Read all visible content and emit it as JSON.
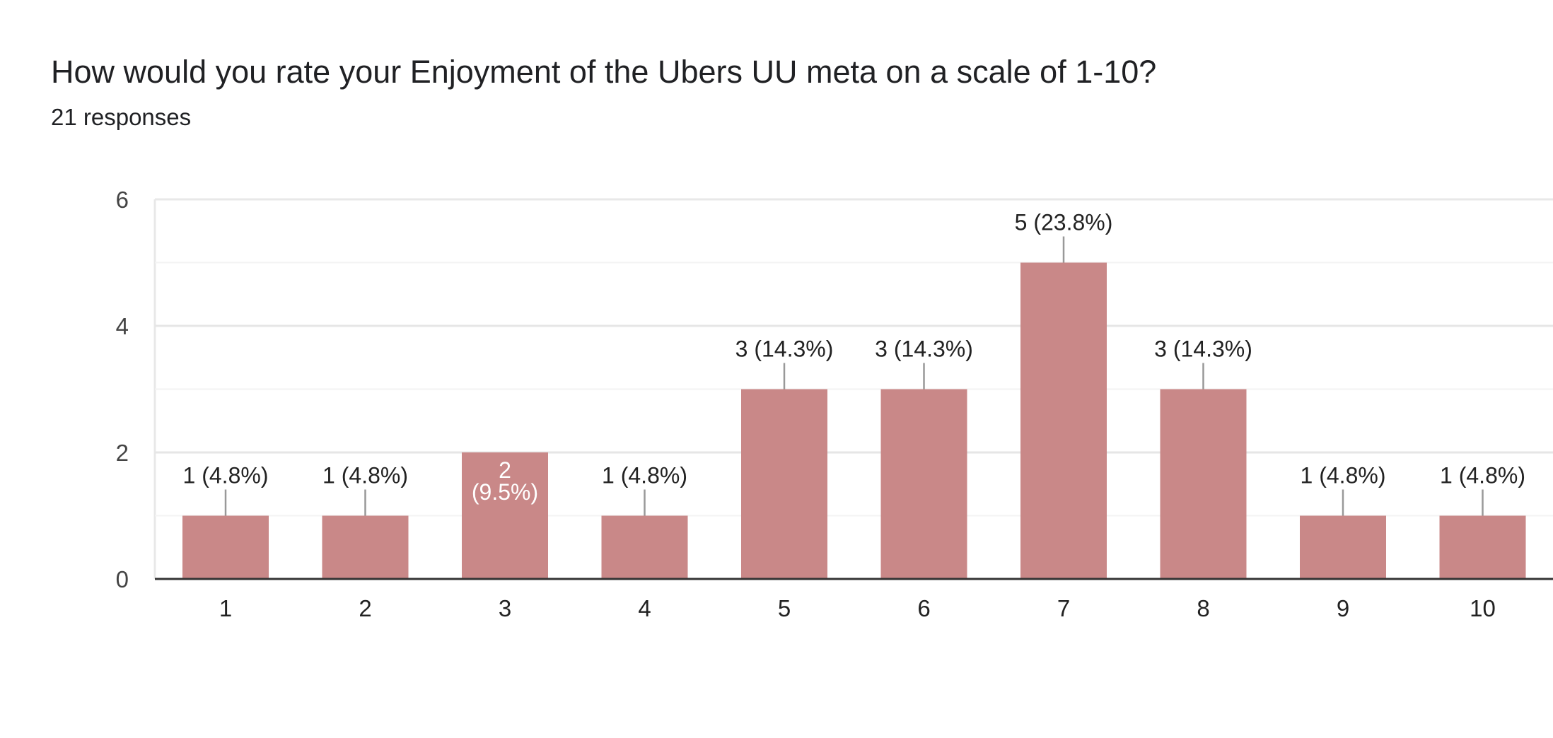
{
  "header": {
    "title": "How would you rate your Enjoyment of the Ubers UU meta on a scale of 1-10?",
    "responses": "21 responses"
  },
  "colors": {
    "bar": "#c98888",
    "grid": "#e8e8e8",
    "axis": "#333333",
    "leader": "#999999"
  },
  "chart_data": {
    "type": "bar",
    "title": "How would you rate your Enjoyment of the Ubers UU meta on a scale of 1-10?",
    "xlabel": "",
    "ylabel": "",
    "categories": [
      "1",
      "2",
      "3",
      "4",
      "5",
      "6",
      "7",
      "8",
      "9",
      "10"
    ],
    "values": [
      1,
      1,
      2,
      1,
      3,
      3,
      5,
      3,
      1,
      1
    ],
    "data_labels": [
      "1 (4.8%)",
      "1 (4.8%)",
      "2 (9.5%)",
      "1 (4.8%)",
      "3 (14.3%)",
      "3 (14.3%)",
      "5 (23.8%)",
      "3 (14.3%)",
      "1 (4.8%)",
      "1 (4.8%)"
    ],
    "ylim": [
      0,
      6
    ],
    "yticks": [
      0,
      2,
      4,
      6
    ],
    "grid": true
  }
}
